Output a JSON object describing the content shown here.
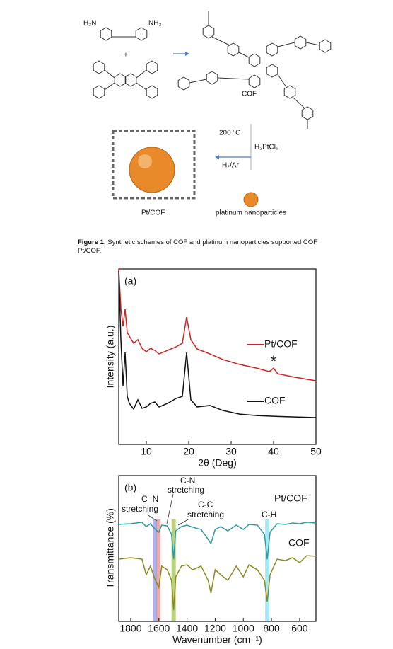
{
  "scheme": {
    "amine_left": "H₂N",
    "amine_right": "NH₂",
    "plus": "+",
    "product": "COF",
    "temperature": "200 ºC",
    "reagent": "H₂PtCl₆",
    "atmosphere": "H₂/Ar",
    "composite": "Pt/COF",
    "particles": "platinum nanoparticles"
  },
  "caption": {
    "label": "Figure 1.",
    "text": "Synthetic schemes of COF and platinum nanoparticles supported COF Pt/COF."
  },
  "chart_data": [
    {
      "type": "line",
      "panel_label": "(a)",
      "x_label": "2θ (Deg)",
      "y_label": "Intensity (a.u.)",
      "x": [
        3.5,
        4,
        4.5,
        5,
        5.5,
        6,
        7,
        8,
        9,
        10,
        11,
        12,
        13,
        15,
        17,
        18.5,
        19.5,
        20.5,
        22,
        25,
        28,
        32,
        36,
        39,
        40,
        41,
        45,
        50
      ],
      "series": [
        {
          "name": "Pt/COF",
          "color": "#d42020",
          "values": [
            100,
            77.4,
            67.3,
            77,
            63.7,
            61.7,
            57.7,
            59.7,
            54.8,
            52.8,
            54.8,
            53.6,
            51.6,
            53.6,
            55.6,
            57.7,
            72.6,
            59.7,
            54.4,
            51.6,
            48.4,
            45.6,
            43.5,
            41.5,
            43.5,
            40.3,
            38.3,
            36.3
          ]
        },
        {
          "name": "COF",
          "color": "#111111",
          "values": [
            98.8,
            59.7,
            33.5,
            52.4,
            27.4,
            23.4,
            20.2,
            25.4,
            20.6,
            21.4,
            23.4,
            24.2,
            21.4,
            23.4,
            26.2,
            27.4,
            52.4,
            25.4,
            21.4,
            22.2,
            19.4,
            17.3,
            16.5,
            16.2,
            16.1,
            16,
            15.7,
            15.3
          ]
        }
      ],
      "annotations": [
        {
          "text": "*",
          "x": 40
        }
      ],
      "xlim": [
        3.5,
        50
      ],
      "ylim": [
        0,
        100
      ],
      "xticks": [
        10,
        20,
        30,
        40,
        50
      ],
      "legend_swatch": true
    },
    {
      "type": "line",
      "panel_label": "(b)",
      "x_label": "Wavenumber (cm⁻¹)",
      "y_label": "Transmittance (%)",
      "x": [
        1885,
        1800,
        1720,
        1690,
        1660,
        1625,
        1600,
        1580,
        1540,
        1510,
        1495,
        1480,
        1440,
        1400,
        1360,
        1300,
        1250,
        1230,
        1200,
        1160,
        1110,
        1050,
        1000,
        960,
        900,
        850,
        830,
        810,
        760,
        700,
        650,
        600,
        550,
        484
      ],
      "series": [
        {
          "name": "Pt/COF",
          "color": "#2e9aa2",
          "values": [
            66.5,
            67,
            68,
            65,
            67,
            63.1,
            61.2,
            66,
            65.5,
            59.7,
            42.7,
            62.1,
            65,
            66,
            64.6,
            63.1,
            56.3,
            53.4,
            63.1,
            65,
            62.1,
            66,
            63.1,
            66.5,
            66,
            59.7,
            42.7,
            61.2,
            67,
            66.5,
            67.5,
            67,
            68,
            67.5
          ]
        },
        {
          "name": "COF",
          "color": "#8a8a1e",
          "values": [
            42.7,
            43.7,
            42.7,
            32,
            37.9,
            28.2,
            23.3,
            37.9,
            35.4,
            28.2,
            7.8,
            30.6,
            37.9,
            38.8,
            35.4,
            37.9,
            28.2,
            19.4,
            35.4,
            32,
            28.2,
            37.9,
            30.6,
            38.8,
            35.4,
            28.2,
            13.6,
            32,
            42.7,
            41.7,
            43.7,
            40.3,
            45.1,
            44.7
          ]
        }
      ],
      "bands": [
        {
          "x": 1628,
          "color": "#8e90e0"
        },
        {
          "x": 1603,
          "color": "#e08a8a"
        },
        {
          "x": 1495,
          "color": "#9cc040"
        },
        {
          "x": 830,
          "color": "#80e0f0"
        }
      ],
      "annotations": [
        {
          "lines": [
            "C=N",
            "stretching"
          ]
        },
        {
          "lines": [
            "C-N",
            "stretching"
          ]
        },
        {
          "lines": [
            "C-C",
            "stretching"
          ]
        },
        {
          "lines": [
            "C-H"
          ]
        }
      ],
      "xlim": [
        1885,
        484
      ],
      "ylim": [
        0,
        100
      ],
      "xticks": [
        1800,
        1600,
        1400,
        1200,
        1000,
        800,
        600
      ],
      "legend_swatch": false
    }
  ]
}
